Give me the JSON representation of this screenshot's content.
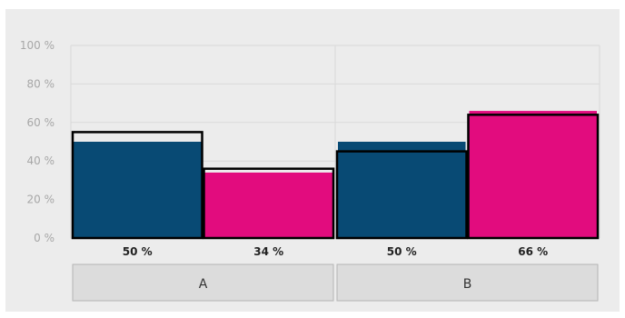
{
  "chart_data": {
    "type": "bar",
    "categories": [
      "A",
      "B"
    ],
    "y_tick_labels": [
      "0 %",
      "20 %",
      "40 %",
      "60 %",
      "80 %",
      "100 %"
    ],
    "ylim": [
      0,
      100
    ],
    "grid": true,
    "series": [
      {
        "values": [
          50,
          50
        ],
        "color": "#084a74"
      },
      {
        "values": [
          34,
          66
        ],
        "color": "#e20c7e"
      }
    ],
    "outlined_values": [
      [
        55,
        36
      ],
      [
        45,
        64
      ]
    ],
    "data_labels": [
      [
        "50 %",
        "34 %"
      ],
      [
        "50 %",
        "66 %"
      ]
    ]
  }
}
